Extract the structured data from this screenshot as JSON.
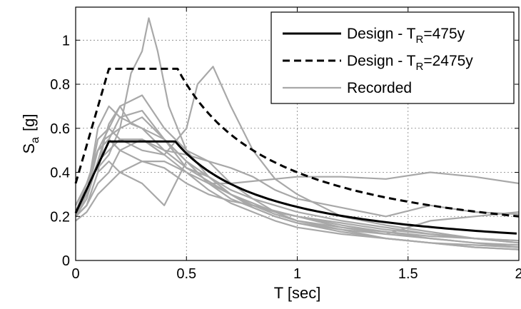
{
  "chart_data": {
    "type": "line",
    "xlabel": "T [sec]",
    "ylabel_main": "S",
    "ylabel_sub": "a",
    "ylabel_unit": "[g]",
    "xlim": [
      0,
      2
    ],
    "ylim": [
      0,
      1.15
    ],
    "x_ticks": [
      0,
      0.5,
      1,
      1.5,
      2
    ],
    "x_tick_labels": [
      "0",
      "0.5",
      "1",
      "1.5",
      "2"
    ],
    "y_ticks": [
      0,
      0.2,
      0.4,
      0.6,
      0.8,
      1
    ],
    "y_tick_labels": [
      "0",
      "0.2",
      "0.4",
      "0.6",
      "0.8",
      "1"
    ],
    "grid": true,
    "legend_position": "top-right",
    "legend": [
      {
        "prefix": "Design - T",
        "sub": "R",
        "suffix": "=475y",
        "style": "solid"
      },
      {
        "prefix": "Design - T",
        "sub": "R",
        "suffix": "=2475y",
        "style": "dashed"
      },
      {
        "prefix": "Recorded",
        "sub": "",
        "suffix": "",
        "style": "gray"
      }
    ],
    "colors": {
      "design": "#000000",
      "recorded": "#a8a8a8",
      "grid": "#7f7f7f"
    },
    "design_series": [
      {
        "name": "Design - TR=475y",
        "style": "solid",
        "TB": 0.15,
        "TC": 0.45,
        "Spl": 0.54,
        "S0": 0.215,
        "Tmax": 2.0
      },
      {
        "name": "Design - TR=2475y",
        "style": "dashed",
        "TB": 0.15,
        "TC": 0.46,
        "Spl": 0.87,
        "S0": 0.35,
        "Tmax": 2.0
      }
    ],
    "recorded_series": [
      {
        "x": [
          0,
          0.05,
          0.1,
          0.15,
          0.2,
          0.25,
          0.3,
          0.35,
          0.4,
          0.5,
          0.6,
          0.7,
          0.8,
          0.9,
          1.0,
          1.2,
          1.4,
          1.6,
          1.8,
          2.0
        ],
        "y": [
          0.22,
          0.3,
          0.55,
          0.6,
          0.7,
          0.62,
          0.6,
          0.55,
          0.5,
          0.42,
          0.36,
          0.3,
          0.26,
          0.22,
          0.2,
          0.16,
          0.13,
          0.1,
          0.08,
          0.07
        ]
      },
      {
        "x": [
          0,
          0.05,
          0.1,
          0.13,
          0.2,
          0.25,
          0.3,
          0.33,
          0.37,
          0.42,
          0.5,
          0.6,
          0.7,
          0.8,
          0.9,
          1.0,
          1.2,
          1.4,
          1.6,
          1.8,
          2.0
        ],
        "y": [
          0.2,
          0.25,
          0.4,
          0.55,
          0.6,
          0.85,
          0.95,
          1.1,
          0.95,
          0.7,
          0.5,
          0.38,
          0.3,
          0.24,
          0.2,
          0.17,
          0.13,
          0.1,
          0.08,
          0.06,
          0.05
        ]
      },
      {
        "x": [
          0,
          0.05,
          0.1,
          0.15,
          0.2,
          0.3,
          0.4,
          0.5,
          0.55,
          0.62,
          0.7,
          0.8,
          0.9,
          1.0,
          1.2,
          1.4,
          1.6,
          1.8,
          2.0
        ],
        "y": [
          0.2,
          0.28,
          0.45,
          0.5,
          0.55,
          0.5,
          0.48,
          0.6,
          0.8,
          0.88,
          0.7,
          0.5,
          0.37,
          0.3,
          0.2,
          0.16,
          0.13,
          0.1,
          0.08
        ]
      },
      {
        "x": [
          0,
          0.05,
          0.1,
          0.15,
          0.2,
          0.3,
          0.4,
          0.5,
          0.6,
          0.7,
          0.8,
          0.9,
          1.0,
          1.2,
          1.4,
          1.6,
          1.8,
          2.0
        ],
        "y": [
          0.2,
          0.3,
          0.5,
          0.55,
          0.5,
          0.45,
          0.45,
          0.4,
          0.35,
          0.35,
          0.36,
          0.37,
          0.38,
          0.38,
          0.37,
          0.4,
          0.38,
          0.35
        ]
      },
      {
        "x": [
          0,
          0.05,
          0.1,
          0.15,
          0.2,
          0.3,
          0.4,
          0.5,
          0.6,
          0.7,
          0.8,
          0.9,
          1.0,
          1.2,
          1.4,
          1.6,
          1.8,
          2.0
        ],
        "y": [
          0.25,
          0.35,
          0.5,
          0.6,
          0.55,
          0.55,
          0.5,
          0.48,
          0.45,
          0.42,
          0.38,
          0.32,
          0.28,
          0.24,
          0.2,
          0.25,
          0.22,
          0.21
        ]
      },
      {
        "x": [
          0,
          0.05,
          0.1,
          0.15,
          0.2,
          0.3,
          0.4,
          0.5,
          0.6,
          0.7,
          0.8,
          1.0,
          1.2,
          1.4,
          1.6,
          1.8,
          2.0
        ],
        "y": [
          0.2,
          0.25,
          0.4,
          0.45,
          0.4,
          0.35,
          0.25,
          0.45,
          0.35,
          0.3,
          0.25,
          0.2,
          0.15,
          0.12,
          0.1,
          0.08,
          0.06
        ]
      },
      {
        "x": [
          0,
          0.05,
          0.1,
          0.15,
          0.2,
          0.3,
          0.4,
          0.5,
          0.6,
          0.7,
          0.8,
          0.9,
          1.0,
          1.2,
          1.4,
          1.6,
          1.8,
          2.0
        ],
        "y": [
          0.18,
          0.22,
          0.3,
          0.35,
          0.4,
          0.45,
          0.42,
          0.35,
          0.3,
          0.27,
          0.25,
          0.22,
          0.2,
          0.17,
          0.14,
          0.12,
          0.1,
          0.08
        ]
      },
      {
        "x": [
          0,
          0.05,
          0.1,
          0.15,
          0.2,
          0.3,
          0.4,
          0.5,
          0.6,
          0.7,
          0.8,
          0.9,
          1.0,
          1.2,
          1.4,
          1.6,
          1.8,
          2.0
        ],
        "y": [
          0.22,
          0.3,
          0.45,
          0.62,
          0.7,
          0.75,
          0.6,
          0.5,
          0.45,
          0.35,
          0.28,
          0.22,
          0.18,
          0.14,
          0.1,
          0.08,
          0.07,
          0.06
        ]
      },
      {
        "x": [
          0,
          0.05,
          0.1,
          0.15,
          0.2,
          0.3,
          0.4,
          0.5,
          0.6,
          0.7,
          0.8,
          0.9,
          1.0,
          1.2,
          1.4,
          1.6,
          1.8,
          2.0
        ],
        "y": [
          0.2,
          0.25,
          0.35,
          0.4,
          0.5,
          0.55,
          0.48,
          0.4,
          0.32,
          0.26,
          0.22,
          0.18,
          0.15,
          0.12,
          0.1,
          0.08,
          0.06,
          0.05
        ]
      },
      {
        "x": [
          0,
          0.05,
          0.1,
          0.15,
          0.2,
          0.3,
          0.4,
          0.5,
          0.6,
          0.7,
          0.8,
          0.9,
          1.0,
          1.2,
          1.4,
          1.6,
          1.8,
          2.0
        ],
        "y": [
          0.25,
          0.35,
          0.42,
          0.48,
          0.6,
          0.65,
          0.55,
          0.42,
          0.38,
          0.32,
          0.28,
          0.25,
          0.22,
          0.18,
          0.15,
          0.12,
          0.1,
          0.09
        ]
      },
      {
        "x": [
          0,
          0.05,
          0.1,
          0.15,
          0.2,
          0.3,
          0.4,
          0.5,
          0.6,
          0.7,
          0.8,
          0.9,
          1.0,
          1.2,
          1.4,
          1.6,
          1.8,
          2.0
        ],
        "y": [
          0.2,
          0.3,
          0.6,
          0.7,
          0.65,
          0.6,
          0.55,
          0.45,
          0.38,
          0.3,
          0.25,
          0.21,
          0.18,
          0.15,
          0.13,
          0.11,
          0.1,
          0.09
        ]
      },
      {
        "x": [
          0,
          0.05,
          0.1,
          0.15,
          0.2,
          0.3,
          0.4,
          0.5,
          0.6,
          0.7,
          0.8,
          0.9,
          1.0,
          1.2,
          1.4,
          1.6,
          1.8,
          2.0
        ],
        "y": [
          0.22,
          0.35,
          0.5,
          0.55,
          0.65,
          0.68,
          0.55,
          0.45,
          0.35,
          0.28,
          0.24,
          0.2,
          0.17,
          0.14,
          0.12,
          0.18,
          0.2,
          0.22
        ]
      }
    ]
  }
}
